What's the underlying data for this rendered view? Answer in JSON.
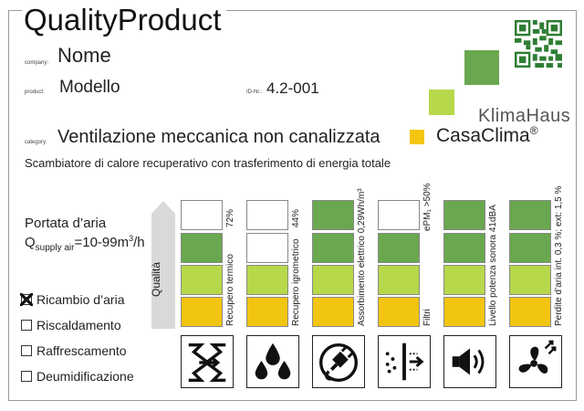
{
  "header": {
    "title": "QualityProduct",
    "company_label": "company:",
    "company_name": "Nome",
    "product_label": "product:",
    "product_name": "Modello",
    "id_label": "ID-Nr.:",
    "id_value": "4.2-001",
    "category_label": "category:",
    "category_value": "Ventilazione meccanica non canalizzata"
  },
  "brand": {
    "line1": "KlimaHaus",
    "line2": "CasaClima",
    "registered": "®",
    "colors": {
      "dark_green": "#6aa84f",
      "light_green": "#b7d84a",
      "yellow": "#f2c511"
    }
  },
  "description": "Scambiatore di calore recuperativo con trasferimento di energia totale",
  "flow": {
    "label": "Portata d’aria",
    "q": "Q",
    "q_sub": "supply air",
    "value": "=10-99m",
    "value_sup": "3",
    "unit": "/h"
  },
  "functions": [
    {
      "label": "Ricambio d’aria",
      "checked": true
    },
    {
      "label": "Riscaldamento",
      "checked": false
    },
    {
      "label": "Raffrescamento",
      "checked": false
    },
    {
      "label": "Deumidificazione",
      "checked": false
    }
  ],
  "quality_label": "Qualità",
  "criteria": [
    {
      "name": "Recupero termico",
      "value": "72%",
      "level": 2,
      "icon": "heat-recovery-icon"
    },
    {
      "name": "Recupero igrometrico",
      "value": "44%",
      "level": 1,
      "icon": "humidity-drops-icon"
    },
    {
      "name": "Assorbimento elettrico 0,29Wh/m³",
      "value": "",
      "level": 3,
      "icon": "power-plug-icon"
    },
    {
      "name": "Filtri",
      "value": "ePM₁ >50%",
      "level": 2,
      "icon": "filter-icon"
    },
    {
      "name": "Livello potenza sonora 41dBA",
      "value": "",
      "level": 3,
      "icon": "speaker-icon"
    },
    {
      "name": "Perdite d’aria int. 0,3 %; ext: 1,5 %",
      "value": "",
      "level": 3,
      "icon": "fan-icon"
    }
  ]
}
